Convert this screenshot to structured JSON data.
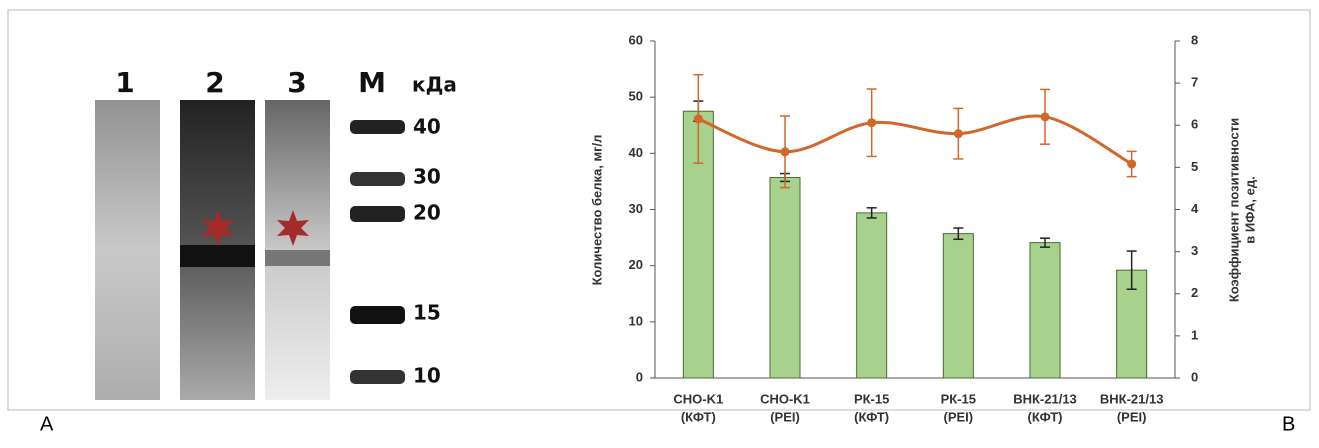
{
  "panel_labels": [
    "A",
    "B"
  ],
  "gel": {
    "lanes": [
      "1",
      "2",
      "3",
      "M"
    ],
    "unit": "кДа",
    "markers": [
      "40",
      "30",
      "20",
      "15",
      "10"
    ]
  },
  "chart_data": {
    "type": "combo",
    "ylabel": "Количество белка, мг/л",
    "y2label": [
      "Коэффициент позитивности",
      "в ИФА, ед."
    ],
    "categories": [
      [
        "CHO-K1",
        "(КФТ)"
      ],
      [
        "CHO-K1",
        "(PEI)"
      ],
      [
        "РК-15",
        "(КФТ)"
      ],
      [
        "РК-15",
        "(PEI)"
      ],
      [
        "ВНК-21/13",
        "(КФТ)"
      ],
      [
        "ВНК-21/13",
        "(PEI)"
      ]
    ],
    "series": [
      {
        "type": "bar",
        "color": "#a9d18e",
        "values": [
          47.5,
          35.7,
          29.4,
          25.7,
          24.1,
          19.2
        ],
        "errors": [
          1.8,
          0.7,
          0.9,
          1.0,
          0.8,
          3.4
        ]
      },
      {
        "type": "line",
        "axis": "y2",
        "color": "#d2672a",
        "values": [
          6.15,
          5.37,
          6.06,
          5.8,
          6.2,
          5.08
        ],
        "errors": [
          1.05,
          0.85,
          0.8,
          0.6,
          0.65,
          0.3
        ]
      }
    ],
    "ylim": [
      0,
      60
    ],
    "yticks": [
      0,
      10,
      20,
      30,
      40,
      50,
      60
    ],
    "y2lim": [
      0,
      8
    ],
    "y2ticks": [
      0,
      1,
      2,
      3,
      4,
      5,
      6,
      7,
      8
    ]
  }
}
